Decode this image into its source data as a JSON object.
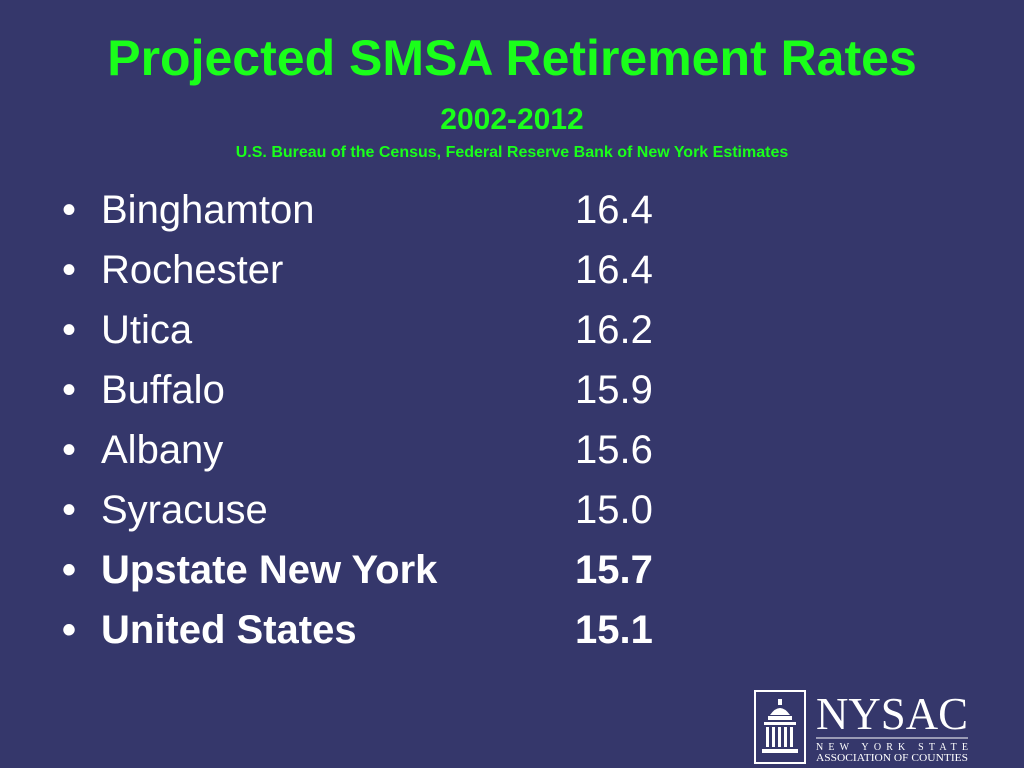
{
  "header": {
    "title": "Projected SMSA Retirement Rates",
    "subtitle": "2002-2012",
    "source": "U.S. Bureau of the Census, Federal Reserve Bank of New York Estimates"
  },
  "items": [
    {
      "label": "Binghamton",
      "value": "16.4"
    },
    {
      "label": "Rochester",
      "value": "16.4"
    },
    {
      "label": "Utica",
      "value": "16.2"
    },
    {
      "label": "Buffalo",
      "value": "15.9"
    },
    {
      "label": "Albany",
      "value": "15.6"
    },
    {
      "label": "Syracuse",
      "value": "15.0"
    },
    {
      "label": "Upstate New York",
      "value": "15.7"
    },
    {
      "label": "United States",
      "value": "15.1"
    }
  ],
  "logo": {
    "name": "NYSAC",
    "line1": "NEW YORK STATE",
    "line2": "ASSOCIATION OF COUNTIES"
  }
}
